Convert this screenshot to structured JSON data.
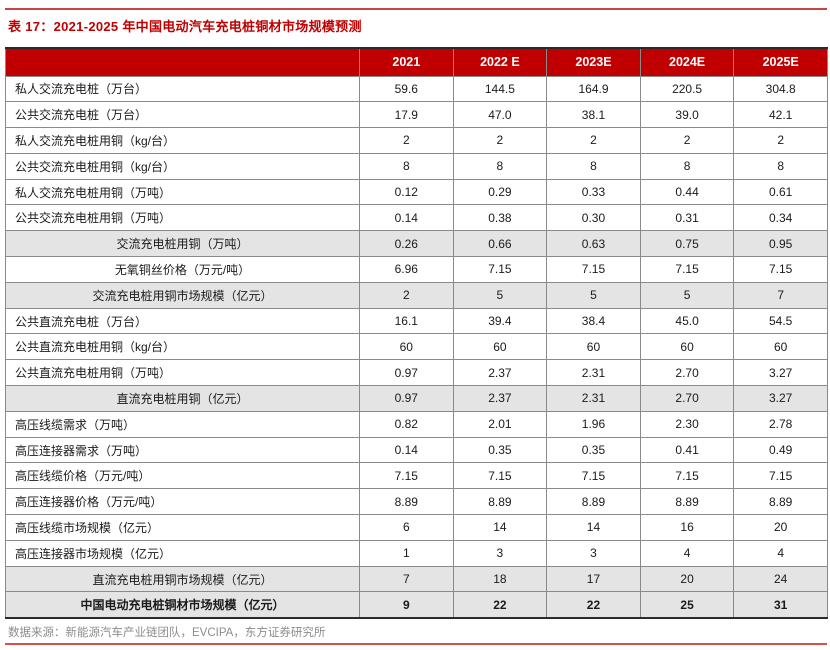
{
  "page": {
    "title": "表 17：2021-2025 年中国电动汽车充电桩铜材市场规模预测",
    "source_note": "数据来源：新能源汽车产业链团队，EVCIPA，东方证券研究所"
  },
  "colors": {
    "accent_red": "#c00000",
    "header_bg": "#c00000",
    "header_text": "#ffffff",
    "band_bg": "#e4e4e4",
    "cell_border": "#8a8a8a",
    "dark_border": "#2b2b2b",
    "source_text": "#8c8c8c",
    "top_rule": "#c94444",
    "bottom_rule": "#dd4a4a"
  },
  "chart_data": {
    "type": "table",
    "title": "表 17：2021-2025 年中国电动汽车充电桩铜材市场规模预测",
    "columns": [
      "",
      "2021",
      "2022 E",
      "2023E",
      "2024E",
      "2025E"
    ],
    "rows": [
      {
        "label": "私人交流充电桩（万台）",
        "values": [
          "59.6",
          "144.5",
          "164.9",
          "220.5",
          "304.8"
        ],
        "style": "plain"
      },
      {
        "label": "公共交流充电桩（万台）",
        "values": [
          "17.9",
          "47.0",
          "38.1",
          "39.0",
          "42.1"
        ],
        "style": "plain"
      },
      {
        "label": "私人交流充电桩用铜（kg/台）",
        "values": [
          "2",
          "2",
          "2",
          "2",
          "2"
        ],
        "style": "plain"
      },
      {
        "label": "公共交流充电桩用铜（kg/台）",
        "values": [
          "8",
          "8",
          "8",
          "8",
          "8"
        ],
        "style": "plain"
      },
      {
        "label": "私人交流充电桩用铜（万吨）",
        "values": [
          "0.12",
          "0.29",
          "0.33",
          "0.44",
          "0.61"
        ],
        "style": "plain"
      },
      {
        "label": "公共交流充电桩用铜（万吨）",
        "values": [
          "0.14",
          "0.38",
          "0.30",
          "0.31",
          "0.34"
        ],
        "style": "plain"
      },
      {
        "label": "交流充电桩用铜（万吨）",
        "values": [
          "0.26",
          "0.66",
          "0.63",
          "0.75",
          "0.95"
        ],
        "style": "band"
      },
      {
        "label": "无氧铜丝价格（万元/吨）",
        "values": [
          "6.96",
          "7.15",
          "7.15",
          "7.15",
          "7.15"
        ],
        "style": "centered"
      },
      {
        "label": "交流充电桩用铜市场规模（亿元）",
        "values": [
          "2",
          "5",
          "5",
          "5",
          "7"
        ],
        "style": "band"
      },
      {
        "label": "公共直流充电桩（万台）",
        "values": [
          "16.1",
          "39.4",
          "38.4",
          "45.0",
          "54.5"
        ],
        "style": "plain"
      },
      {
        "label": "公共直流充电桩用铜（kg/台）",
        "values": [
          "60",
          "60",
          "60",
          "60",
          "60"
        ],
        "style": "plain"
      },
      {
        "label": "公共直流充电桩用铜（万吨）",
        "values": [
          "0.97",
          "2.37",
          "2.31",
          "2.70",
          "3.27"
        ],
        "style": "plain"
      },
      {
        "label": "直流充电桩用铜（亿元）",
        "values": [
          "0.97",
          "2.37",
          "2.31",
          "2.70",
          "3.27"
        ],
        "style": "band"
      },
      {
        "label": "高压线缆需求（万吨）",
        "values": [
          "0.82",
          "2.01",
          "1.96",
          "2.30",
          "2.78"
        ],
        "style": "plain"
      },
      {
        "label": "高压连接器需求（万吨）",
        "values": [
          "0.14",
          "0.35",
          "0.35",
          "0.41",
          "0.49"
        ],
        "style": "plain"
      },
      {
        "label": "高压线缆价格（万元/吨）",
        "values": [
          "7.15",
          "7.15",
          "7.15",
          "7.15",
          "7.15"
        ],
        "style": "plain"
      },
      {
        "label": "高压连接器价格（万元/吨）",
        "values": [
          "8.89",
          "8.89",
          "8.89",
          "8.89",
          "8.89"
        ],
        "style": "plain"
      },
      {
        "label": "高压线缆市场规模（亿元）",
        "values": [
          "6",
          "14",
          "14",
          "16",
          "20"
        ],
        "style": "plain"
      },
      {
        "label": "高压连接器市场规模（亿元）",
        "values": [
          "1",
          "3",
          "3",
          "4",
          "4"
        ],
        "style": "plain"
      },
      {
        "label": "直流充电桩用铜市场规模（亿元）",
        "values": [
          "7",
          "18",
          "17",
          "20",
          "24"
        ],
        "style": "band"
      },
      {
        "label": "中国电动充电桩铜材市场规模（亿元）",
        "values": [
          "9",
          "22",
          "22",
          "25",
          "31"
        ],
        "style": "band-bold"
      }
    ]
  }
}
